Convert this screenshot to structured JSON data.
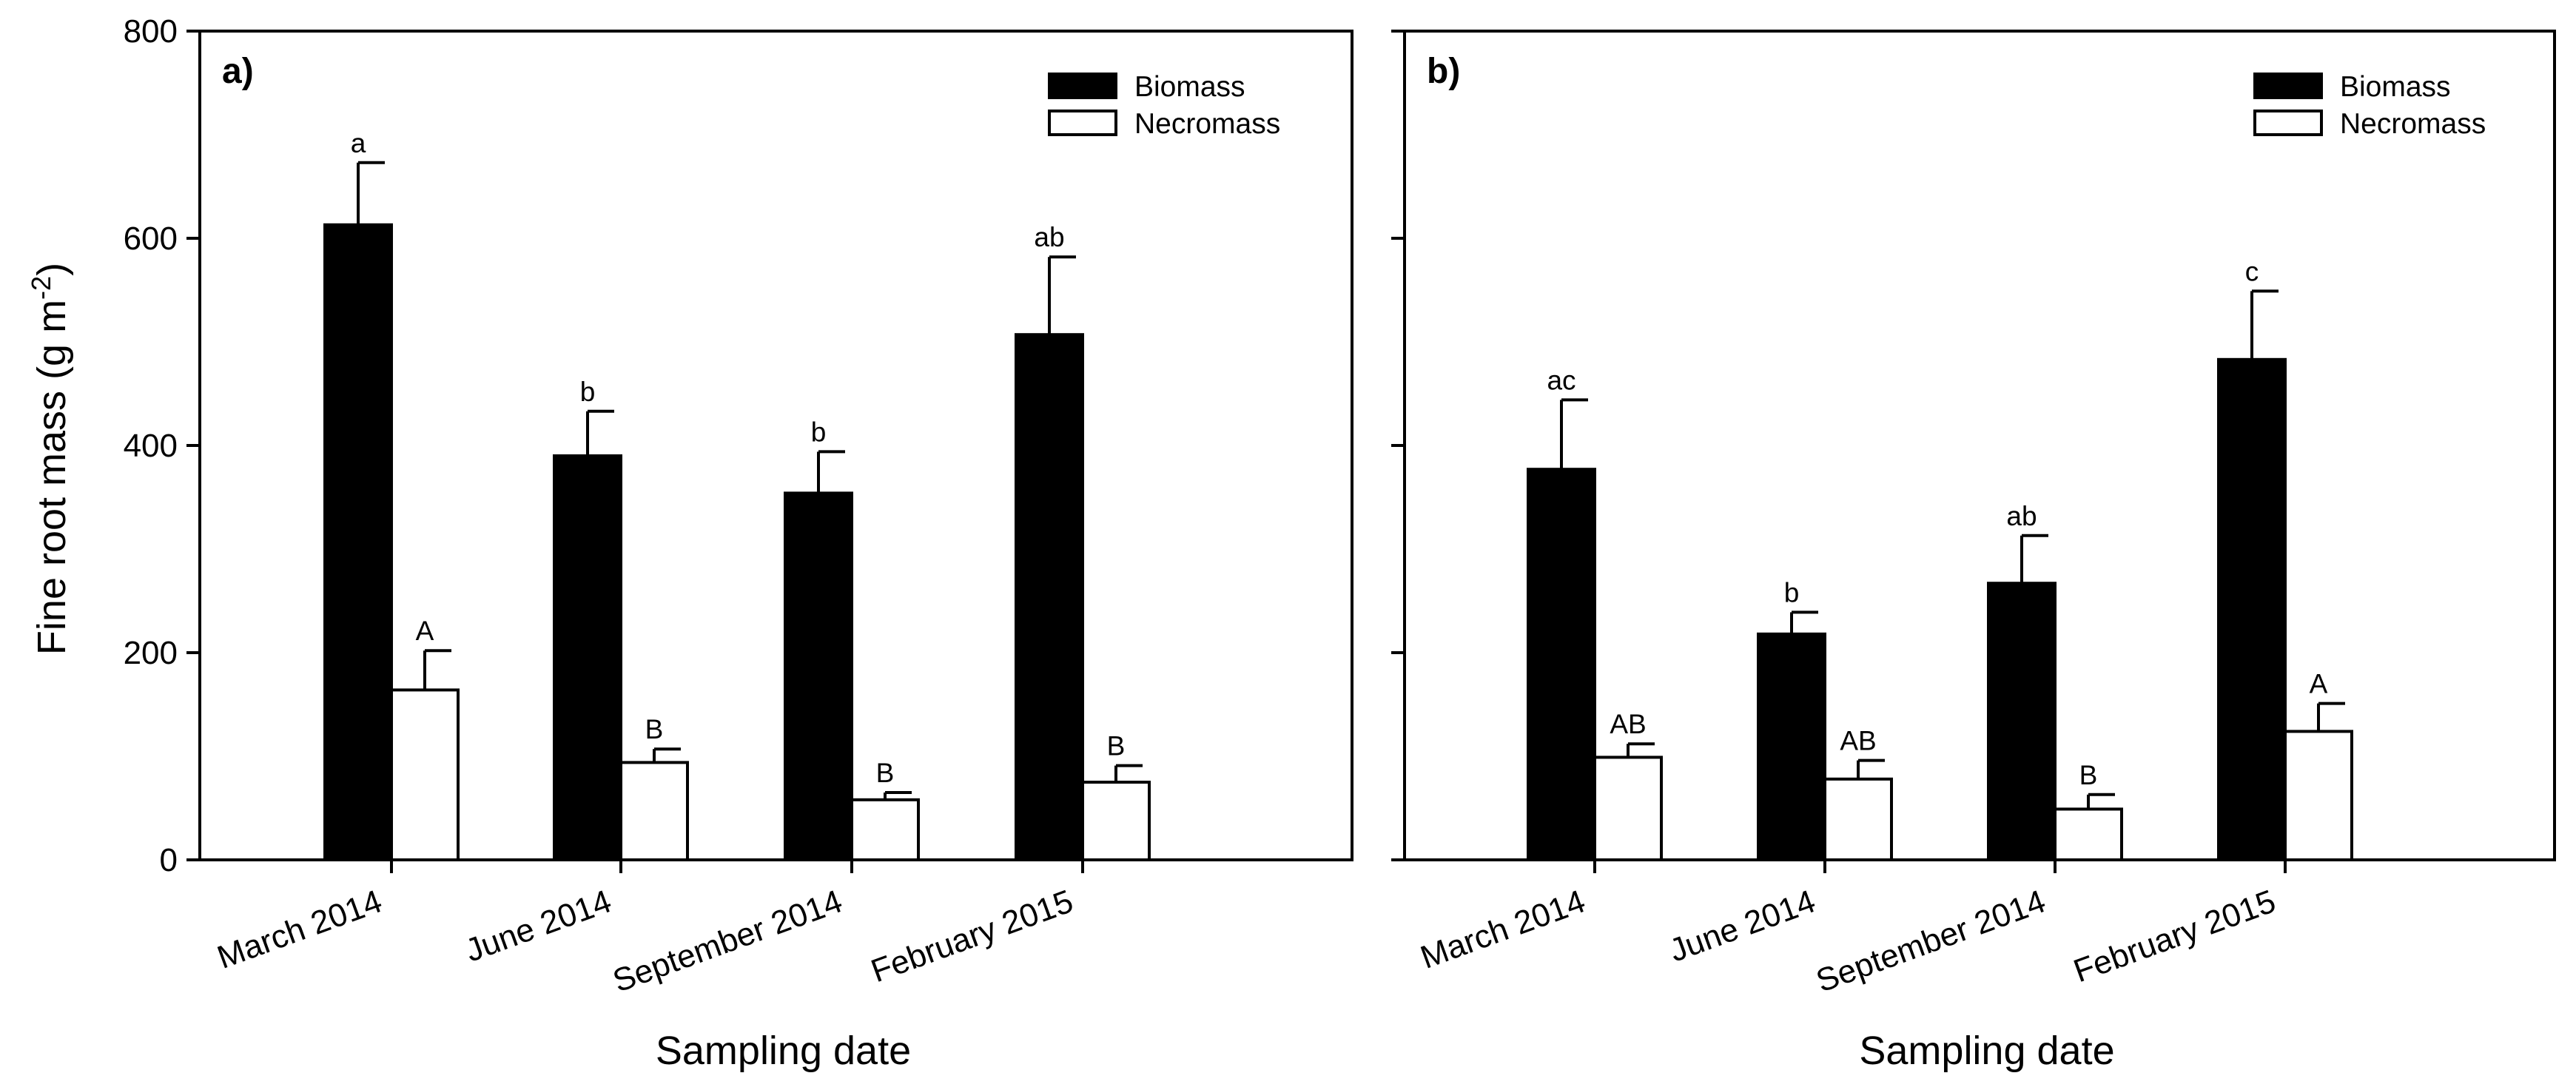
{
  "figure": {
    "ylabel_main": "Fine root mass (g m",
    "ylabel_sup": "-2",
    "ylabel_close": ")",
    "y_ticks": [
      "0",
      "200",
      "400",
      "600",
      "800"
    ]
  },
  "chart_data": [
    {
      "type": "bar",
      "panel_label": "a)",
      "xlabel": "Sampling date",
      "ylabel": "Fine root mass (g m-2)",
      "ylim": [
        0,
        800
      ],
      "categories": [
        "March 2014",
        "June 2014",
        "September 2014",
        "February 2015"
      ],
      "legend": [
        "Biomass",
        "Necromass"
      ],
      "legend_position": "top-right",
      "series": [
        {
          "name": "Biomass",
          "color": "#000000",
          "values": [
            613,
            390,
            354,
            507
          ],
          "errors": [
            60,
            43,
            40,
            75
          ],
          "letters": [
            "a",
            "b",
            "b",
            "ab"
          ]
        },
        {
          "name": "Necromass",
          "color": "#ffffff",
          "values": [
            164,
            94,
            58,
            75
          ],
          "errors": [
            38,
            13,
            7,
            16
          ],
          "letters": [
            "A",
            "B",
            "B",
            "B"
          ]
        }
      ]
    },
    {
      "type": "bar",
      "panel_label": "b)",
      "xlabel": "Sampling date",
      "ylabel": "Fine root mass (g m-2)",
      "ylim": [
        0,
        800
      ],
      "categories": [
        "March 2014",
        "June 2014",
        "September 2014",
        "February 2015"
      ],
      "legend": [
        "Biomass",
        "Necromass"
      ],
      "legend_position": "top-right",
      "series": [
        {
          "name": "Biomass",
          "color": "#000000",
          "values": [
            377,
            218,
            267,
            483
          ],
          "errors": [
            67,
            21,
            46,
            66
          ],
          "letters": [
            "ac",
            "b",
            "ab",
            "c"
          ]
        },
        {
          "name": "Necromass",
          "color": "#ffffff",
          "values": [
            99,
            78,
            49,
            124
          ],
          "errors": [
            13,
            18,
            14,
            27
          ],
          "letters": [
            "AB",
            "AB",
            "B",
            "A"
          ]
        }
      ]
    }
  ]
}
